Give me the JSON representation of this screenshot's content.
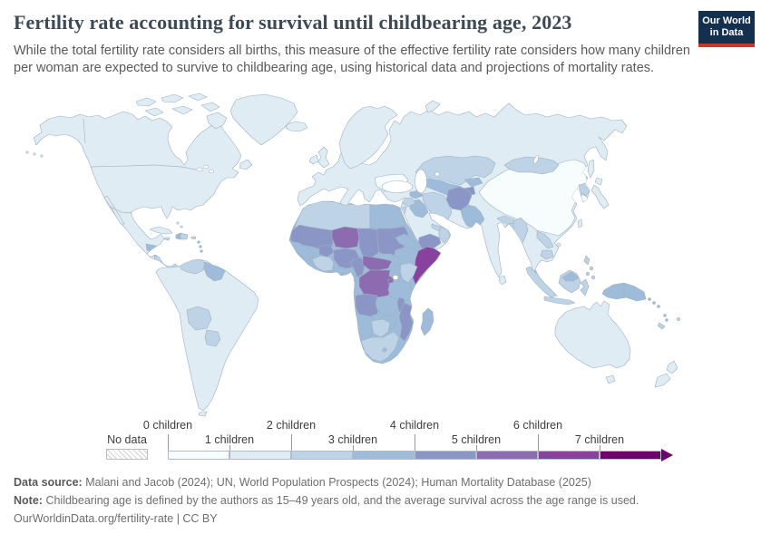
{
  "header": {
    "title": "Fertility rate accounting for survival until childbearing age, 2023",
    "subtitle": "While the total fertility rate considers all births, this measure of the effective fertility rate considers how many children per woman are expected to survive to childbearing age, using historical data and projections of mortality rates.",
    "logo": {
      "line1": "Our World",
      "line2": "in Data",
      "navy": "#13304f",
      "red": "#c5382d"
    }
  },
  "legend": {
    "no_data_label": "No data",
    "bins": [
      {
        "label": "0 children",
        "color": "#f7fcfd"
      },
      {
        "label": "1 children",
        "color": "#e0ecf4"
      },
      {
        "label": "2 children",
        "color": "#bfd3e6"
      },
      {
        "label": "3 children",
        "color": "#9ebcda"
      },
      {
        "label": "4 children",
        "color": "#8c96c6"
      },
      {
        "label": "5 children",
        "color": "#8c6bb1"
      },
      {
        "label": "6 children",
        "color": "#88419d"
      },
      {
        "label": "7 children",
        "color": "#6e016b"
      }
    ]
  },
  "footer": {
    "sources_label": "Data source:",
    "sources_text": "Malani and Jacob (2024); UN, World Population Prospects (2024); Human Mortality Database (2025)",
    "note_label": "Note:",
    "note_text": "Childbearing age is defined by the authors as 15–49 years old, and the average survival across the age range is used.",
    "url_line": "OurWorldinData.org/fertility-rate | CC BY"
  },
  "chart_data": {
    "type": "choropleth_map",
    "title": "Fertility rate accounting for survival until childbearing age",
    "year": 2023,
    "unit": "children per woman (surviving to childbearing age)",
    "legend_note": "bins of one child width from 0 to 7+, BuPu color scale, hatched = no data",
    "palette": {
      "0-1": "#f7fcfd",
      "1-2": "#e0ecf4",
      "2-3": "#bfd3e6",
      "3-4": "#9ebcda",
      "4-5": "#8c96c6",
      "5-6": "#8c6bb1",
      "6-7": "#88419d",
      "7+": "#6e016b"
    },
    "regions": {
      "greenland": "1-2",
      "iceland": "1-2",
      "north-america": "1-2",
      "baja": "1-2",
      "arctic-islands": "1-2",
      "newfoundland": "1-2",
      "aleutians": "1-2",
      "cuba": "1-2",
      "haiti": "3-4",
      "dominican-republic": "2-3",
      "jamaica": "2-3",
      "puerto-rico": "2-3",
      "lesser-antilles": "3-4",
      "bahamas": "1-2",
      "guatemala": "3-4",
      "honduras": "3-4",
      "nicaragua": "2-3",
      "panama": "2-3",
      "south-america": "1-2",
      "venezuela": "2-3",
      "guyanas": "3-4",
      "bolivia": "2-3",
      "paraguay": "2-3",
      "tierra-del-fuego": "1-2",
      "eurasia": "1-2",
      "scandinavia": "1-2",
      "uk": "1-2",
      "ireland": "1-2",
      "ukraine": "0-1",
      "kazakhstan": "2-3",
      "central-asia": "3-4",
      "kyrgyzstan": "3-4",
      "tajikistan": "4-5",
      "afghanistan": "4-5",
      "pakistan": "3-4",
      "iran": "2-3",
      "iraq": "3-4",
      "syria": "2-3",
      "jordan": "2-3",
      "caucasus": "3-4",
      "yemen": "4-5",
      "oman": "2-3",
      "uae": "2-3",
      "mongolia": "2-3",
      "china": "0-1",
      "north-korea": "2-3",
      "south-korea": "0-1",
      "nepal": "2-3",
      "bangladesh": "2-3",
      "myanmar": "2-3",
      "laos": "2-3",
      "cambodia": "2-3",
      "malaysia-peninsula": "3-4",
      "sri-lanka": "1-2",
      "sumatra": "2-3",
      "java": "2-3",
      "borneo": "2-3",
      "malaysia-borneo": "3-4",
      "sulawesi": "2-3",
      "new-guinea": "3-4",
      "philippines": "2-3",
      "taiwan": "1-2",
      "hainan": "1-2",
      "japan": "1-2",
      "sakhalin": "1-2",
      "novaya-zemlya": "1-2",
      "africa": "3-4",
      "north-africa": "2-3",
      "egypt": "3-4",
      "mauritania-mali": "4-5",
      "senegal-guinea": "3-4",
      "burkina-faso": "4-5",
      "ivory-coast-ghana": "2-3",
      "niger": "5-6",
      "nigeria": "4-5",
      "chad": "4-5",
      "sudan": "4-5",
      "eritrea": "3-4",
      "ethiopia": "3-4",
      "somalia": "6-7",
      "south-sudan": "3-4",
      "cameroon": "4-5",
      "central-african-republic": "5-6",
      "dr-congo": "5-6",
      "congo-gabon": "3-4",
      "uganda": "3-4",
      "kenya": "2-3",
      "rwanda-burundi": "5-6",
      "tanzania": "3-4",
      "angola": "4-5",
      "zambia": "3-4",
      "malawi": "4-5",
      "mozambique": "4-5",
      "zimbabwe": "3-4",
      "namibia": "3-4",
      "botswana": "2-3",
      "south-africa": "2-3",
      "lesotho": "3-4",
      "madagascar": "3-4",
      "australia": "1-2",
      "tasmania": "1-2",
      "new-zealand": "1-2",
      "solomon-islands": "3-4",
      "vanuatu": "3-4",
      "fiji": "2-3",
      "new-caledonia": "2-3"
    }
  }
}
